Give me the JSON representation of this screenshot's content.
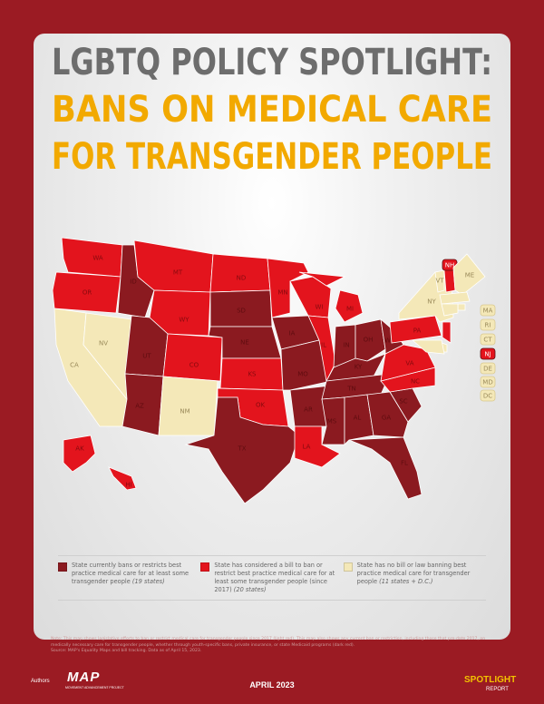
{
  "header": {
    "title": "LGBTQ POLICY SPOTLIGHT:",
    "subtitle_1": "BANS ON MEDICAL CARE",
    "subtitle_2": "FOR TRANSGENDER PEOPLE"
  },
  "map": {
    "categories": [
      {
        "color": "#8b1a20",
        "label": "State currently bans or restricts best practice medical care for at least some transgender people",
        "count": "(19 states)"
      },
      {
        "color": "#e3141d",
        "label": "State has considered a bill to ban or restrict best practice medical care for at least some transgender people (since 2017)",
        "count": "(20 states)"
      },
      {
        "color": "#f4e8b8",
        "label": "State has no bill or law banning best practice medical care for transgender people",
        "count": "(11 states + D.C.)"
      }
    ],
    "states": [
      {
        "label": "WA",
        "category": 1
      },
      {
        "label": "OR",
        "category": 1
      },
      {
        "label": "CA",
        "category": 2
      },
      {
        "label": "NV",
        "category": 2
      },
      {
        "label": "ID",
        "category": 0
      },
      {
        "label": "MT",
        "category": 1
      },
      {
        "label": "WY",
        "category": 1
      },
      {
        "label": "UT",
        "category": 0
      },
      {
        "label": "AZ",
        "category": 0
      },
      {
        "label": "CO",
        "category": 1
      },
      {
        "label": "NM",
        "category": 2
      },
      {
        "label": "ND",
        "category": 1
      },
      {
        "label": "SD",
        "category": 0
      },
      {
        "label": "NE",
        "category": 0
      },
      {
        "label": "KS",
        "category": 1
      },
      {
        "label": "OK",
        "category": 1
      },
      {
        "label": "TX",
        "category": 0
      },
      {
        "label": "MN",
        "category": 1
      },
      {
        "label": "IA",
        "category": 0
      },
      {
        "label": "MO",
        "category": 0
      },
      {
        "label": "AR",
        "category": 0
      },
      {
        "label": "LA",
        "category": 1
      },
      {
        "label": "WI",
        "category": 1
      },
      {
        "label": "IL",
        "category": 1
      },
      {
        "label": "MI",
        "category": 1
      },
      {
        "label": "IN",
        "category": 0
      },
      {
        "label": "OH",
        "category": 0
      },
      {
        "label": "KY",
        "category": 0
      },
      {
        "label": "TN",
        "category": 0
      },
      {
        "label": "MS",
        "category": 0
      },
      {
        "label": "AL",
        "category": 0
      },
      {
        "label": "GA",
        "category": 0
      },
      {
        "label": "FL",
        "category": 0
      },
      {
        "label": "SC",
        "category": 0
      },
      {
        "label": "NC",
        "category": 1
      },
      {
        "label": "VA",
        "category": 1
      },
      {
        "label": "WV",
        "category": 0
      },
      {
        "label": "PA",
        "category": 1
      },
      {
        "label": "NY",
        "category": 2
      },
      {
        "label": "VT",
        "category": 2
      },
      {
        "label": "NH",
        "category": 1
      },
      {
        "label": "ME",
        "category": 2
      },
      {
        "label": "MA",
        "category": 2
      },
      {
        "label": "RI",
        "category": 2
      },
      {
        "label": "CT",
        "category": 2
      },
      {
        "label": "NJ",
        "category": 1
      },
      {
        "label": "DE",
        "category": 2
      },
      {
        "label": "MD",
        "category": 2
      },
      {
        "label": "DC",
        "category": 2
      },
      {
        "label": "AK",
        "category": 1
      },
      {
        "label": "HI",
        "category": 1
      }
    ]
  },
  "note": "Note: This map shows legislative efforts to ban or restrict medical care for transgender people since 2017 (light red). This map also shows any current ban or restriction, including those that pre-date 2017, on medically necessary care for transgender people, whether through youth-specific bans, private insurance, or state Medicaid programs (dark red).",
  "source": "Source: MAP's Equality Maps and bill tracking. Data as of April 15, 2023.",
  "footer": {
    "authors": "Authors",
    "logo": "MAP",
    "logo_sub": "MOVEMENT ADVANCEMENT PROJECT",
    "date": "APRIL 2023",
    "brand": "SPOTLIGHT",
    "brand_sub": "REPORT"
  }
}
